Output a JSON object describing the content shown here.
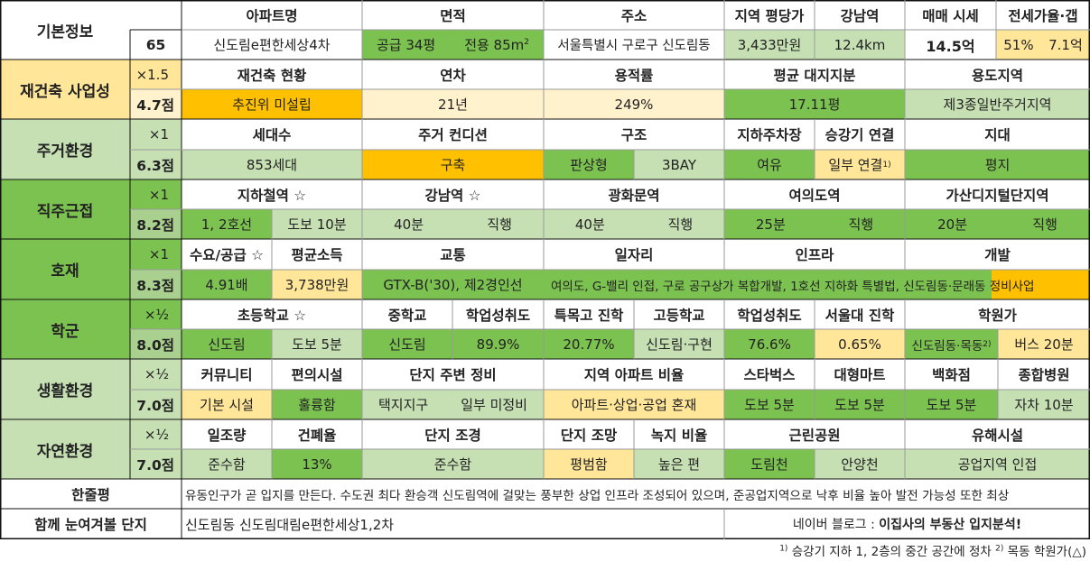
{
  "basic": {
    "label": "기본정보",
    "number": "65",
    "headers": {
      "apt": "아파트명",
      "area": "면적",
      "addr": "주소",
      "ppp": "지역 평당가",
      "gangnam": "강남역",
      "price": "매매 시세",
      "jeonse": "전세가율·갭"
    },
    "values": {
      "apt": "신도림e편한세상4차",
      "area_supply": "공급 34평",
      "area_exclusive": "전용 85m",
      "area_unit_sup": "2",
      "addr": "서울특별시 구로구 신도림동",
      "ppp": "3,433만원",
      "gangnam": "12.4km",
      "price": "14.5억",
      "jeonse_rate": "51%",
      "gap": "7.1억"
    }
  },
  "rebuild": {
    "label": "재건축 사업성",
    "mult": "×1.5",
    "score": "4.7점",
    "headers": {
      "status": "재건축 현황",
      "age": "연차",
      "far": "용적률",
      "land": "평균 대지지분",
      "zone": "용도지역"
    },
    "values": {
      "status": "추진위 미설립",
      "age": "21년",
      "far": "249%",
      "land": "17.11평",
      "zone": "제3종일반주거지역"
    }
  },
  "living": {
    "label": "주거환경",
    "mult": "×1",
    "score": "6.3점",
    "headers": {
      "households": "세대수",
      "condition": "주거 컨디션",
      "structure": "구조",
      "parking": "지하주차장",
      "elevator": "승강기 연결",
      "terrain": "지대"
    },
    "values": {
      "households": "853세대",
      "condition": "구축",
      "structure1": "판상형",
      "structure2": "3BAY",
      "parking": "여유",
      "elevator": "일부 연결",
      "elevator_sup": "1)",
      "terrain": "평지"
    }
  },
  "commute": {
    "label": "직주근접",
    "mult": "×1",
    "score": "8.2점",
    "headers": {
      "subway": "지하철역 ☆",
      "gangnam": "강남역 ☆",
      "gwanghwamun": "광화문역",
      "yeouido": "여의도역",
      "gasan": "가산디지털단지역"
    },
    "values": {
      "subway_line": "1, 2호선",
      "subway_walk": "도보 10분",
      "gangnam_time": "40분",
      "gangnam_mode": "직행",
      "gwanghwamun_time": "40분",
      "gwanghwamun_mode": "직행",
      "yeouido_time": "25분",
      "yeouido_mode": "직행",
      "gasan_time": "20분",
      "gasan_mode": "직행"
    }
  },
  "development": {
    "label": "호재",
    "mult": "×1",
    "score": "8.3점",
    "headers": {
      "supply": "수요/공급 ☆",
      "income": "평균소득",
      "traffic": "교통",
      "jobs": "일자리",
      "infra": "인프라",
      "dev": "개발"
    },
    "values": {
      "supply": "4.91배",
      "income": "3,738만원",
      "traffic": "GTX-B('30), 제2경인선",
      "jobs_infra_dev": "여의도, G-밸리 인접, 구로 공구상가 복합개발, 1호선 지하화 특별법, 신도림동·문래동 정비사업"
    }
  },
  "school": {
    "label": "학군",
    "mult": "×½",
    "score": "8.0점",
    "headers": {
      "elem": "초등학교 ☆",
      "middle": "중학교",
      "middle_rate": "학업성취도",
      "special": "특목고 진학",
      "high": "고등학교",
      "high_rate": "학업성취도",
      "snu": "서울대 진학",
      "academy": "학원가"
    },
    "values": {
      "elem": "신도림",
      "elem_walk": "도보 5분",
      "middle": "신도림",
      "middle_rate": "89.9%",
      "special": "20.77%",
      "high": "신도림·구현",
      "high_rate": "76.6%",
      "snu": "0.65%",
      "academy": "신도림동·목동",
      "academy_sup": "2)",
      "academy_bus": "버스 20분"
    }
  },
  "life": {
    "label": "생활환경",
    "mult": "×½",
    "score": "7.0점",
    "headers": {
      "community": "커뮤니티",
      "facility": "편의시설",
      "surround": "단지 주변 정비",
      "ratio": "지역 아파트 비율",
      "starbucks": "스타벅스",
      "mart": "대형마트",
      "dept": "백화점",
      "hospital": "종합병원"
    },
    "values": {
      "community": "기본 시설",
      "facility": "훌륭함",
      "surround1": "택지지구",
      "surround2": "일부 미정비",
      "ratio": "아파트·상업·공업 혼재",
      "starbucks": "도보 5분",
      "mart": "도보 5분",
      "dept": "도보 5분",
      "hospital": "자차 10분"
    }
  },
  "nature": {
    "label": "자연환경",
    "mult": "×½",
    "score": "7.0점",
    "headers": {
      "sunlight": "일조량",
      "coverage": "건폐율",
      "landscape": "단지 조경",
      "view": "단지 조망",
      "green": "녹지 비율",
      "park": "근린공원",
      "harmful": "유해시설"
    },
    "values": {
      "sunlight": "준수함",
      "coverage": "13%",
      "landscape": "준수함",
      "view": "평범함",
      "green": "높은 편",
      "park1": "도림천",
      "park2": "안양천",
      "harmful": "공업지역 인접"
    }
  },
  "summary": {
    "label": "한줄평",
    "text": "유동인구가 곧 입지를 만든다. 수도권 최다 환승객 신도림역에 걸맞는 풍부한 상업 인프라 조성되어 있으며, 준공업지역으로 낙후 비율 높아 발전 가능성 또한 최상"
  },
  "related": {
    "label": "함께 눈여겨볼 단지",
    "text": "신도림동 신도림대림e편한세상1,2차",
    "blog_prefix": "네이버 블로그 : ",
    "blog_name": "이집사의 부동산 입지분석!"
  },
  "footnotes": {
    "n1_mark": "1)",
    "n1": " 승강기 지하 1, 2층의 중간 공간에 정차 ",
    "n2_mark": "2)",
    "n2": " 목동 학원가(△)"
  }
}
